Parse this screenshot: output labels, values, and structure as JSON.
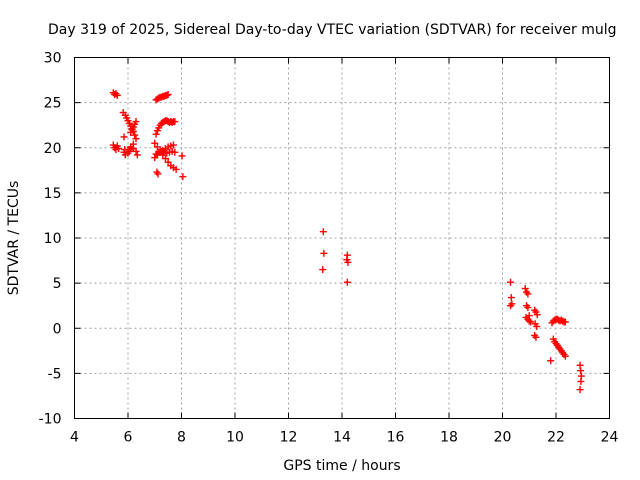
{
  "chart_data": {
    "type": "scatter",
    "title": "Day 319 of 2025, Sidereal Day-to-day VTEC variation (SDTVAR) for receiver mulg",
    "xlabel": "GPS time / hours",
    "ylabel": "SDTVAR / TECUs",
    "xlim": [
      4,
      24
    ],
    "ylim": [
      -10,
      30
    ],
    "xticks": [
      "4",
      "6",
      "8",
      "10",
      "12",
      "14",
      "16",
      "18",
      "20",
      "22",
      "24"
    ],
    "yticks": [
      "-10",
      "-5",
      "0",
      "5",
      "10",
      "15",
      "20",
      "25",
      "30"
    ],
    "grid": true,
    "marker": "plus",
    "color": "#ff0000",
    "series": [
      {
        "name": "SDTVAR",
        "x": [
          5.45,
          5.5,
          5.55,
          5.6,
          5.45,
          5.5,
          5.55,
          5.6,
          5.65,
          5.82,
          5.9,
          5.95,
          6.0,
          6.05,
          6.1,
          6.15,
          6.2,
          6.25,
          6.3,
          6.3,
          6.25,
          6.2,
          6.15,
          6.1,
          6.0,
          6.05,
          6.1,
          6.2,
          6.3,
          6.35,
          5.85,
          5.9,
          5.88,
          5.85,
          6.05,
          6.1,
          6.2,
          7.05,
          7.1,
          7.15,
          7.2,
          7.25,
          7.3,
          7.35,
          7.4,
          7.45,
          7.5,
          7.05,
          7.1,
          7.15,
          7.2,
          7.25,
          7.3,
          7.35,
          7.4,
          7.45,
          7.5,
          7.55,
          7.6,
          7.65,
          7.7,
          7.75,
          7.0,
          7.1,
          7.2,
          7.3,
          7.4,
          7.5,
          7.6,
          7.7,
          7.0,
          7.1,
          7.2,
          7.3,
          7.4,
          7.5,
          7.6,
          7.7,
          7.8,
          7.05,
          7.15,
          7.25,
          7.35,
          7.45,
          7.55,
          7.65,
          7.75,
          7.08,
          7.12,
          8.02,
          8.05,
          13.3,
          13.32,
          13.28,
          14.2,
          14.22,
          14.18,
          14.2,
          20.3,
          20.33,
          20.35,
          20.3,
          20.85,
          20.9,
          20.95,
          20.9,
          20.95,
          21.0,
          20.88,
          20.95,
          21.0,
          21.05,
          21.2,
          21.25,
          21.3,
          21.22,
          21.28,
          21.2,
          21.25,
          21.85,
          21.9,
          21.95,
          22.0,
          22.05,
          22.1,
          22.15,
          22.2,
          22.25,
          22.3,
          22.35,
          21.9,
          21.95,
          22.0,
          22.05,
          22.1,
          22.15,
          22.2,
          22.25,
          22.3,
          22.35,
          21.8,
          22.9,
          22.92,
          22.95,
          22.93,
          22.9
        ],
        "y": [
          26.1,
          25.9,
          26.0,
          25.8,
          20.3,
          20.0,
          19.8,
          20.2,
          19.9,
          23.9,
          23.6,
          23.3,
          23.0,
          22.7,
          22.4,
          22.1,
          21.8,
          21.4,
          21.0,
          22.9,
          22.6,
          22.3,
          22.0,
          21.7,
          19.4,
          19.8,
          20.1,
          20.4,
          19.6,
          19.2,
          19.5,
          19.2,
          19.8,
          21.2,
          19.6,
          20.0,
          19.9,
          25.3,
          25.4,
          25.5,
          25.6,
          25.6,
          25.7,
          25.7,
          25.8,
          25.8,
          25.9,
          21.5,
          21.9,
          22.2,
          22.5,
          22.7,
          22.8,
          22.9,
          23.0,
          23.0,
          22.9,
          22.8,
          22.9,
          22.8,
          22.9,
          22.9,
          18.9,
          19.2,
          19.5,
          19.7,
          19.9,
          20.1,
          20.2,
          20.3,
          20.5,
          20.1,
          19.6,
          19.2,
          18.8,
          18.4,
          18.0,
          17.8,
          17.6,
          19.3,
          19.5,
          19.6,
          19.5,
          19.4,
          19.5,
          19.6,
          19.5,
          17.3,
          17.1,
          19.1,
          16.8,
          10.7,
          8.3,
          6.5,
          8.1,
          7.3,
          7.6,
          5.1,
          5.1,
          3.4,
          2.7,
          2.5,
          4.4,
          4.0,
          3.8,
          2.5,
          2.3,
          1.4,
          1.2,
          1.0,
          0.8,
          0.7,
          2.0,
          1.8,
          1.5,
          0.5,
          0.2,
          -0.8,
          -1.0,
          0.6,
          0.8,
          0.9,
          1.0,
          1.0,
          0.9,
          0.8,
          0.9,
          0.8,
          0.7,
          0.7,
          -1.2,
          -1.5,
          -1.7,
          -1.9,
          -2.1,
          -2.3,
          -2.5,
          -2.7,
          -2.9,
          -3.1,
          -3.6,
          -4.1,
          -4.7,
          -5.3,
          -5.9,
          -6.8
        ]
      }
    ]
  }
}
